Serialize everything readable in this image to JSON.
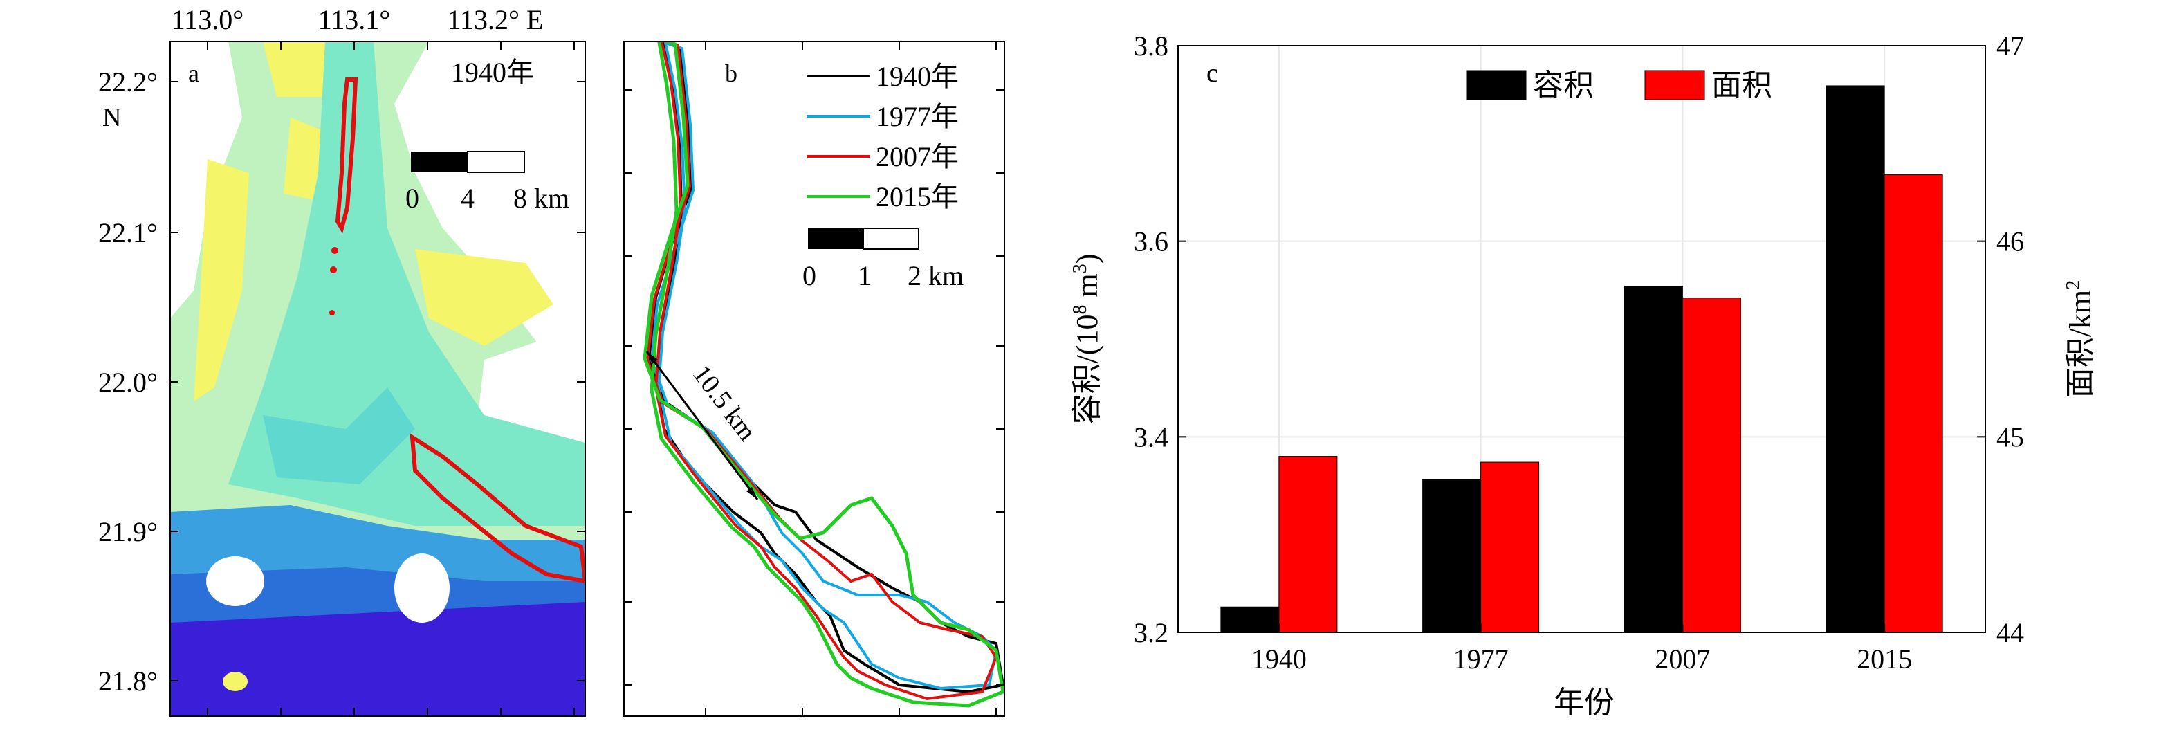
{
  "panel_a": {
    "label": "a",
    "year": "1940年",
    "lon_ticks": [
      "113.0°",
      "113.1°",
      "113.2° E"
    ],
    "lat_ticks": [
      "22.2°",
      "22.1°",
      "22.0°",
      "21.9°",
      "21.8°"
    ],
    "north_label": "N",
    "scale_ticks": [
      "0",
      "4",
      "8 km"
    ]
  },
  "panel_b": {
    "label": "b",
    "legend": [
      "1940年",
      "1977年",
      "2007年",
      "2015年"
    ],
    "legend_colors": [
      "#000000",
      "#12a9e3",
      "#e01010",
      "#22cc22"
    ],
    "scale_ticks": [
      "0",
      "1",
      "2 km"
    ],
    "distance_label": "10.5 km"
  },
  "chart_data": {
    "type": "bar",
    "panel_label": "c",
    "categories": [
      "1940",
      "1977",
      "2007",
      "2015"
    ],
    "xlabel": "年份",
    "series": [
      {
        "name": "容积",
        "axis": "left",
        "color": "#000000",
        "values": [
          3.226,
          3.356,
          3.554,
          3.759
        ]
      },
      {
        "name": "面积",
        "axis": "right",
        "color": "#ff0000",
        "values": [
          44.9,
          44.87,
          45.71,
          46.34
        ]
      }
    ],
    "left_axis": {
      "label": "容积/(10",
      "label_sup": "8",
      "label_tail": " m",
      "label_sup2": "3",
      "label_end": ")",
      "ylim": [
        3.2,
        3.8
      ],
      "ticks": [
        "3.2",
        "3.4",
        "3.6",
        "3.8"
      ]
    },
    "right_axis": {
      "label": "面积/km",
      "label_sup": "2",
      "ylim": [
        44,
        47
      ],
      "ticks": [
        "44",
        "45",
        "46",
        "47"
      ]
    },
    "grid": true,
    "legend_position": "top"
  }
}
